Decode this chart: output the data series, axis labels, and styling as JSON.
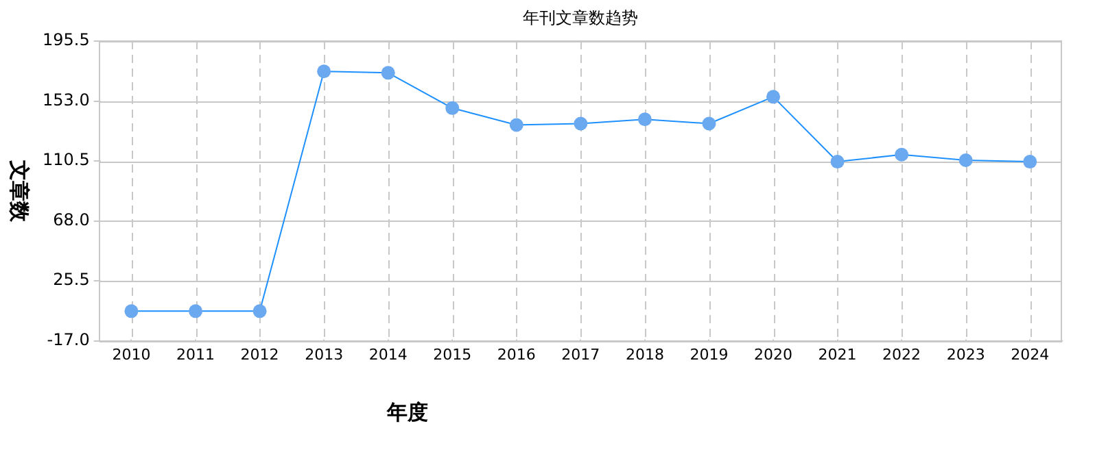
{
  "chart_data": {
    "type": "line",
    "title": "年刊文章数趋势",
    "xlabel": "年度",
    "ylabel": "文章数",
    "categories": [
      "2010",
      "2011",
      "2012",
      "2013",
      "2014",
      "2015",
      "2016",
      "2017",
      "2018",
      "2019",
      "2020",
      "2021",
      "2022",
      "2023",
      "2024"
    ],
    "series": [
      {
        "color": "#1e90ff",
        "values": [
          4,
          4,
          4,
          174,
          173,
          148,
          136,
          137,
          140,
          137,
          156,
          110,
          115,
          111,
          110
        ]
      }
    ],
    "ylim": [
      -17,
      195.5
    ],
    "yticks": [
      {
        "value": -17,
        "label": "-17.0"
      },
      25.5,
      {
        "value": 68,
        "label": "68.0"
      },
      110.5,
      {
        "value": 153,
        "label": "153.0"
      },
      195.5
    ],
    "grid": true,
    "legend": false,
    "marker": "circle",
    "line_style": "solid"
  }
}
